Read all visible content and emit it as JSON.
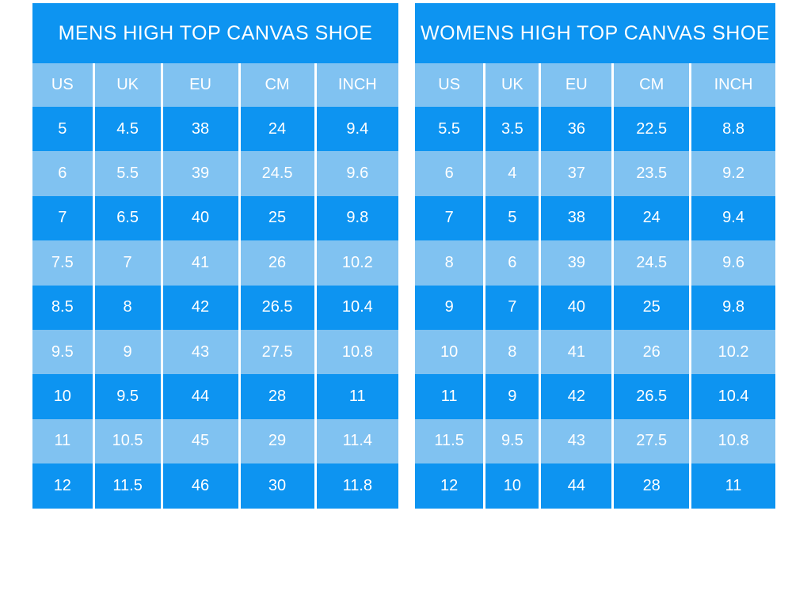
{
  "colors": {
    "dark_blue": "#0D94F1",
    "light_blue": "#80C2F1",
    "text": "#FFFFFF",
    "background": "#FFFFFF"
  },
  "tables": [
    {
      "id": "mens",
      "title": "MENS HIGH TOP CANVAS SHOE",
      "columns": [
        "US",
        "UK",
        "EU",
        "CM",
        "INCH"
      ],
      "col_widths_pct": [
        16.7,
        18.6,
        21.2,
        20.8,
        22.7
      ],
      "rows": [
        [
          "5",
          "4.5",
          "38",
          "24",
          "9.4"
        ],
        [
          "6",
          "5.5",
          "39",
          "24.5",
          "9.6"
        ],
        [
          "7",
          "6.5",
          "40",
          "25",
          "9.8"
        ],
        [
          "7.5",
          "7",
          "41",
          "26",
          "10.2"
        ],
        [
          "8.5",
          "8",
          "42",
          "26.5",
          "10.4"
        ],
        [
          "9.5",
          "9",
          "43",
          "27.5",
          "10.8"
        ],
        [
          "10",
          "9.5",
          "44",
          "28",
          "11"
        ],
        [
          "11",
          "10.5",
          "45",
          "29",
          "11.4"
        ],
        [
          "12",
          "11.5",
          "46",
          "30",
          "11.8"
        ]
      ]
    },
    {
      "id": "womens",
      "title": "WOMENS HIGH TOP CANVAS SHOE",
      "columns": [
        "US",
        "UK",
        "EU",
        "CM",
        "INCH"
      ],
      "col_widths_pct": [
        19.3,
        15.4,
        20.2,
        21.5,
        23.6
      ],
      "rows": [
        [
          "5.5",
          "3.5",
          "36",
          "22.5",
          "8.8"
        ],
        [
          "6",
          "4",
          "37",
          "23.5",
          "9.2"
        ],
        [
          "7",
          "5",
          "38",
          "24",
          "9.4"
        ],
        [
          "8",
          "6",
          "39",
          "24.5",
          "9.6"
        ],
        [
          "9",
          "7",
          "40",
          "25",
          "9.8"
        ],
        [
          "10",
          "8",
          "41",
          "26",
          "10.2"
        ],
        [
          "11",
          "9",
          "42",
          "26.5",
          "10.4"
        ],
        [
          "11.5",
          "9.5",
          "43",
          "27.5",
          "10.8"
        ],
        [
          "12",
          "10",
          "44",
          "28",
          "11"
        ]
      ]
    }
  ]
}
